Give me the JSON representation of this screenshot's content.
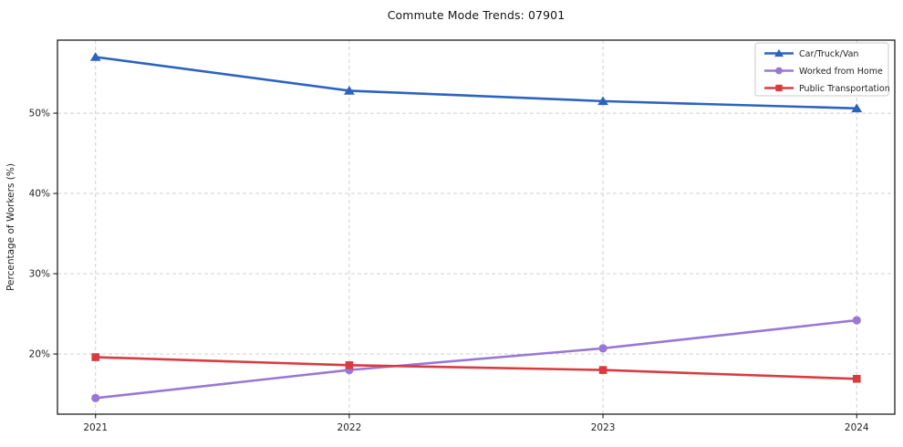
{
  "chart_data": {
    "type": "line",
    "title": "Commute Mode Trends: 07901",
    "xlabel": "",
    "ylabel": "Percentage of Workers (%)",
    "x": [
      2021,
      2022,
      2023,
      2024
    ],
    "x_tick_labels": [
      "2021",
      "2022",
      "2023",
      "2024"
    ],
    "y_ticks": [
      20,
      30,
      40,
      50
    ],
    "y_tick_labels": [
      "20%",
      "30%",
      "40%",
      "50%"
    ],
    "xlim": [
      2020.85,
      2024.15
    ],
    "ylim": [
      12.5,
      59.1
    ],
    "grid": true,
    "grid_style": "dashed",
    "legend_position": "upper right",
    "series": [
      {
        "name": "Car/Truck/Van",
        "color": "#2d63c0",
        "marker": "triangle",
        "values": [
          57.0,
          52.8,
          51.5,
          50.6
        ]
      },
      {
        "name": "Worked from Home",
        "color": "#9878d6",
        "marker": "circle",
        "values": [
          14.5,
          18.0,
          20.7,
          24.2
        ]
      },
      {
        "name": "Public Transportation",
        "color": "#d93b40",
        "marker": "square",
        "values": [
          19.6,
          18.6,
          18.0,
          16.9
        ]
      }
    ]
  },
  "style_colors": {
    "grid": "#cfcfcf",
    "spine": "#1f1f1f",
    "tick_text": "#1f1f1f",
    "legend_border": "#c9c9c9",
    "legend_bg": "#ffffff"
  }
}
